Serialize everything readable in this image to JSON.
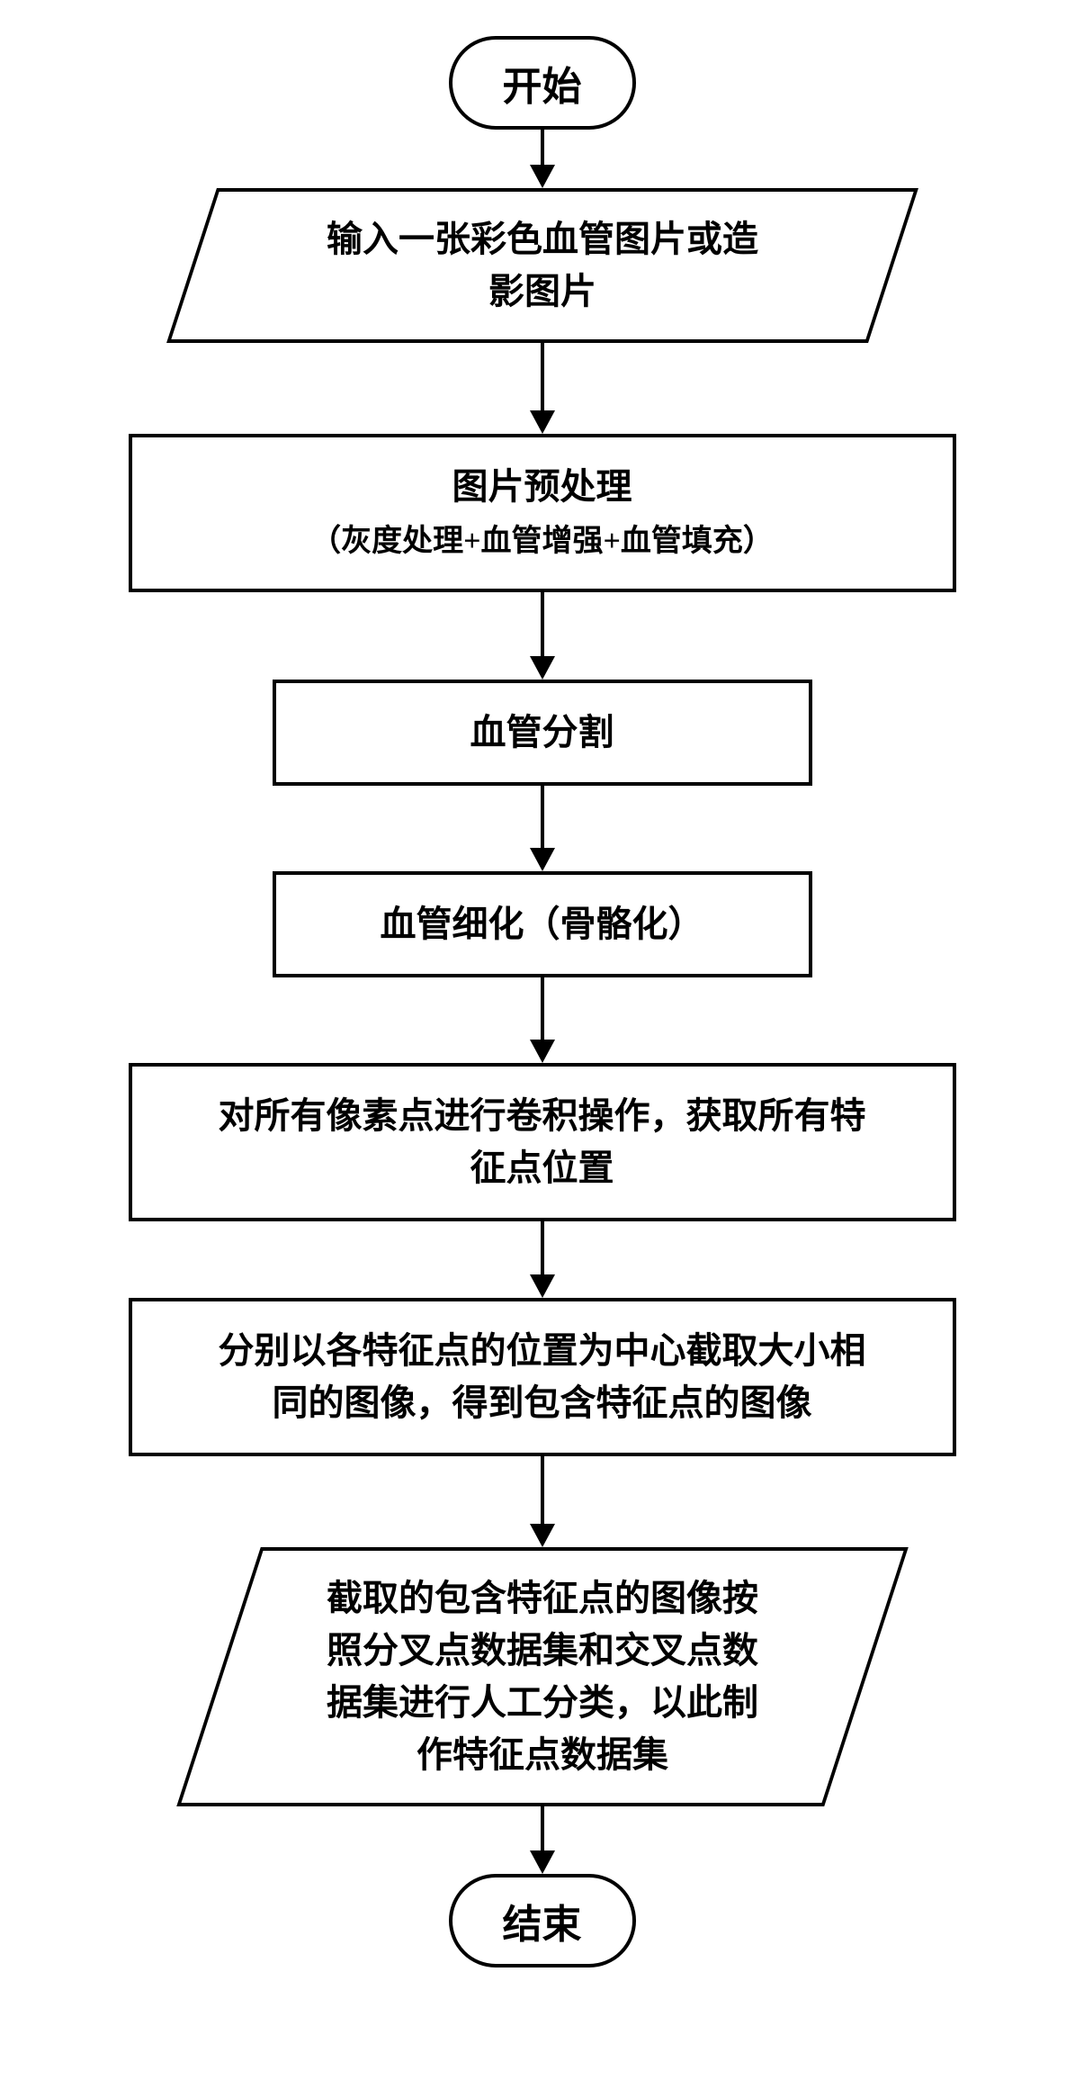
{
  "flowchart": {
    "type": "flowchart",
    "direction": "top-to-bottom",
    "border_color": "#000000",
    "border_width": 4,
    "background_color": "#ffffff",
    "node_font_size": 40,
    "terminator_font_size": 44,
    "subtext_font_size": 34,
    "font_family": "SimSun",
    "arrow_line_width": 4,
    "arrow_head_width": 28,
    "arrow_head_height": 26,
    "nodes": [
      {
        "id": "start",
        "shape": "terminator",
        "text": "开始"
      },
      {
        "id": "input",
        "shape": "parallelogram",
        "lines": [
          "输入一张彩色血管图片或造",
          "影图片"
        ]
      },
      {
        "id": "preprocess",
        "shape": "process",
        "lines": [
          "图片预处理",
          "（灰度处理+血管增强+血管填充）"
        ]
      },
      {
        "id": "segment",
        "shape": "process",
        "text": "血管分割"
      },
      {
        "id": "thin",
        "shape": "process",
        "text": "血管细化（骨骼化）"
      },
      {
        "id": "conv",
        "shape": "process",
        "lines": [
          "对所有像素点进行卷积操作，获取所有特",
          "征点位置"
        ]
      },
      {
        "id": "crop",
        "shape": "process",
        "lines": [
          "分别以各特征点的位置为中心截取大小相",
          "同的图像，得到包含特征点的图像"
        ]
      },
      {
        "id": "output",
        "shape": "parallelogram",
        "lines": [
          "截取的包含特征点的图像按",
          "照分叉点数据集和交叉点数",
          "据集进行人工分类，以此制",
          "作特征点数据集"
        ]
      },
      {
        "id": "end",
        "shape": "terminator",
        "text": "结束"
      }
    ],
    "edges": [
      {
        "from": "start",
        "to": "input",
        "gap": 40
      },
      {
        "from": "input",
        "to": "preprocess",
        "gap": 76
      },
      {
        "from": "preprocess",
        "to": "segment",
        "gap": 72
      },
      {
        "from": "segment",
        "to": "thin",
        "gap": 70
      },
      {
        "from": "thin",
        "to": "conv",
        "gap": 70
      },
      {
        "from": "conv",
        "to": "crop",
        "gap": 60
      },
      {
        "from": "crop",
        "to": "output",
        "gap": 76
      },
      {
        "from": "output",
        "to": "end",
        "gap": 50
      }
    ]
  }
}
